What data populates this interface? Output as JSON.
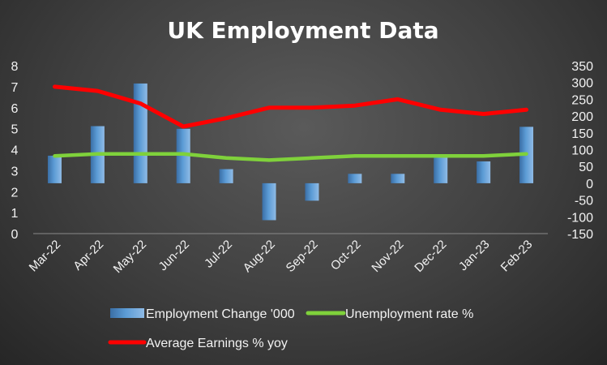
{
  "chart_data": {
    "type": "bar+line",
    "title": "UK Employment Data",
    "categories": [
      "Mar-22",
      "Apr-22",
      "May-22",
      "Jun-22",
      "Jul-22",
      "Aug-22",
      "Sep-22",
      "Oct-22",
      "Nov-22",
      "Dec-22",
      "Jan-23",
      "Feb-23"
    ],
    "left_axis": {
      "range": [
        0,
        8
      ],
      "ticks": [
        "0",
        "1",
        "2",
        "3",
        "4",
        "5",
        "6",
        "7",
        "8"
      ]
    },
    "right_axis": {
      "range": [
        -150,
        350
      ],
      "ticks": [
        "-150",
        "-100",
        "-50",
        "0",
        "50",
        "100",
        "150",
        "200",
        "250",
        "300",
        "350"
      ]
    },
    "series": [
      {
        "name": "Employment Change '000",
        "kind": "bar",
        "axis": "right",
        "color": "#5b9bd5",
        "values": [
          82,
          170,
          297,
          162,
          42,
          -110,
          -52,
          28,
          28,
          80,
          65,
          168
        ]
      },
      {
        "name": "Unemployment rate %",
        "kind": "line",
        "axis": "left",
        "color": "#7fd13b",
        "values": [
          3.7,
          3.8,
          3.8,
          3.8,
          3.6,
          3.5,
          3.6,
          3.7,
          3.7,
          3.7,
          3.7,
          3.8
        ]
      },
      {
        "name": "Average Earnings % yoy",
        "kind": "line",
        "axis": "left",
        "color": "#ff0000",
        "values": [
          7.0,
          6.8,
          6.2,
          5.1,
          5.5,
          6.0,
          6.0,
          6.1,
          6.4,
          5.9,
          5.7,
          5.9
        ]
      }
    ],
    "legend": "bottom",
    "grid": false
  }
}
